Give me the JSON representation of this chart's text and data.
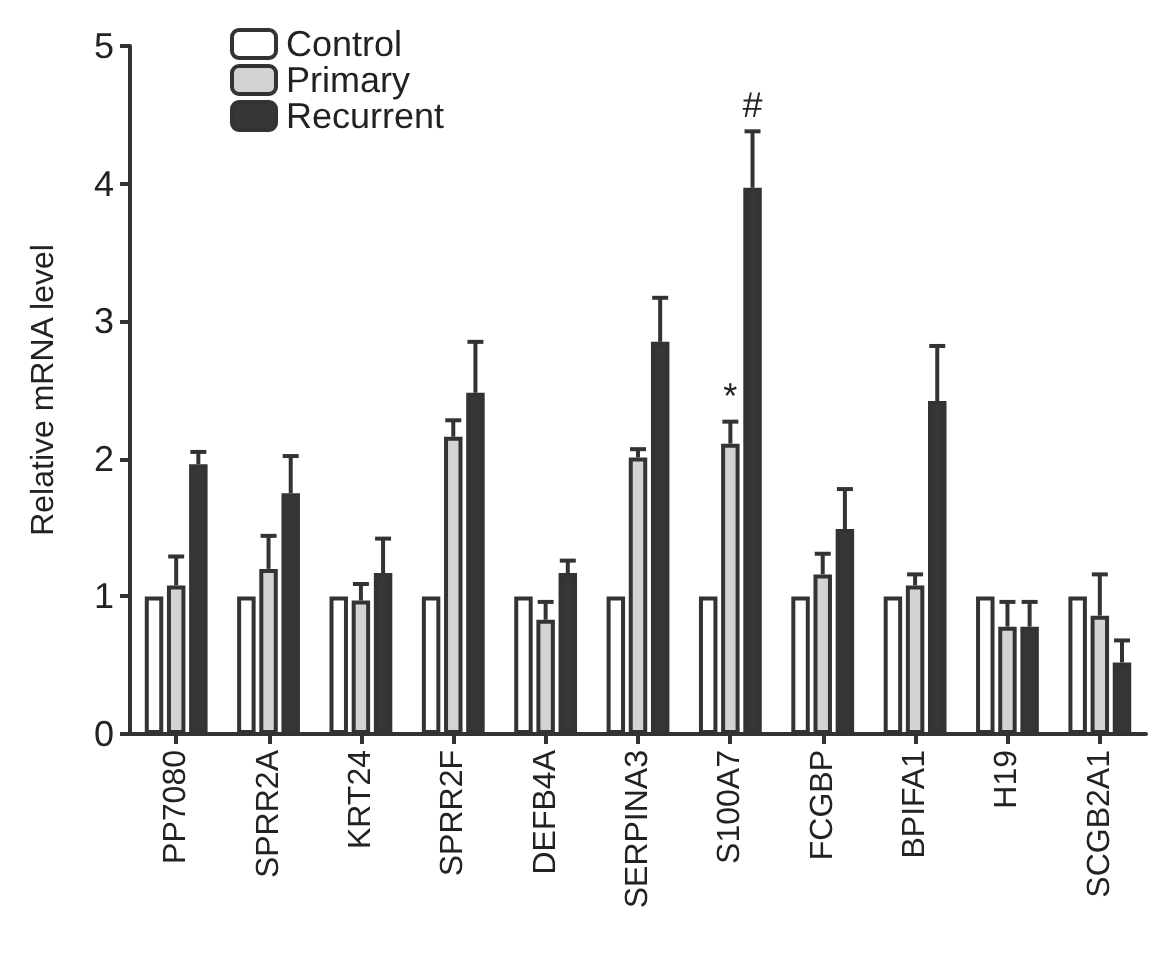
{
  "chart_data": {
    "type": "bar",
    "ylabel": "Relative mRNA level",
    "categories": [
      "PP7080",
      "SPRR2A",
      "KRT24",
      "SPRR2F",
      "DEFB4A",
      "SERPINA3",
      "S100A7",
      "FCGBP",
      "BPIFA1",
      "H19",
      "SCGB2A1"
    ],
    "series": [
      {
        "name": "Control",
        "color": "#ffffff",
        "values": [
          1,
          1,
          1,
          1,
          1,
          1,
          1,
          1,
          1,
          1,
          1
        ]
      },
      {
        "name": "Primary",
        "color": "#d3d3d3",
        "values": [
          1.08,
          1.2,
          0.97,
          2.16,
          0.83,
          2.01,
          2.11,
          1.16,
          1.08,
          0.78,
          0.86
        ],
        "value_labels": [
          null,
          null,
          null,
          null,
          null,
          null,
          "*",
          null,
          null,
          null,
          null
        ],
        "errors": [
          [
            1.08,
            1.29
          ],
          [
            1.2,
            1.44
          ],
          [
            0.97,
            1.09
          ],
          [
            2.16,
            2.28
          ],
          [
            0.83,
            0.96
          ],
          [
            2.01,
            2.07
          ],
          [
            2.11,
            2.27
          ],
          [
            1.16,
            1.31
          ],
          [
            1.08,
            1.16
          ],
          [
            0.78,
            0.96
          ],
          [
            0.86,
            1.16
          ]
        ]
      },
      {
        "name": "Recurrent",
        "color": "#363636",
        "values": [
          1.96,
          1.75,
          1.17,
          2.48,
          1.17,
          2.85,
          3.97,
          1.49,
          2.42,
          0.78,
          0.52
        ],
        "value_labels": [
          null,
          null,
          null,
          null,
          null,
          null,
          "#",
          null,
          null,
          null,
          null
        ],
        "errors": [
          [
            1.96,
            2.05
          ],
          [
            1.75,
            2.02
          ],
          [
            1.17,
            1.42
          ],
          [
            2.48,
            2.85
          ],
          [
            1.17,
            1.26
          ],
          [
            2.85,
            3.17
          ],
          [
            3.97,
            4.38
          ],
          [
            1.49,
            1.78
          ],
          [
            2.42,
            2.82
          ],
          [
            0.78,
            0.96
          ],
          [
            0.52,
            0.68
          ]
        ]
      }
    ],
    "ylim": [
      0,
      5
    ],
    "yticks": [
      0,
      1,
      2,
      3,
      4,
      5
    ],
    "grid": false,
    "legend": "top left"
  }
}
